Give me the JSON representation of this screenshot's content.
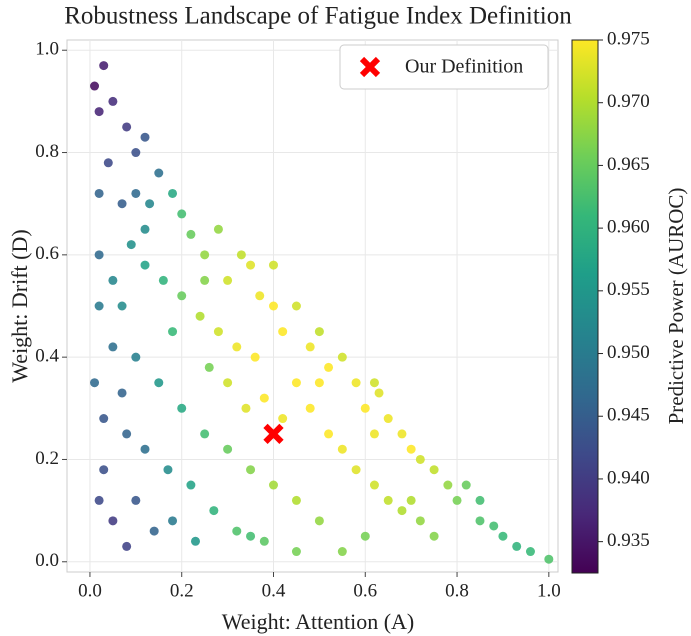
{
  "chart_data": {
    "type": "scatter",
    "title": "Robustness Landscape of Fatigue Index Definition",
    "xlabel": "Weight: Attention (A)",
    "ylabel": "Weight: Drift (D)",
    "colorbar_label": "Predictive Power (AUROC)",
    "colormap": "viridis",
    "grid": true,
    "legend": "upper right",
    "xlim": [
      -0.05,
      1.02
    ],
    "ylim": [
      -0.02,
      1.02
    ],
    "clim": [
      0.9325,
      0.975
    ],
    "xticks": [
      {
        "value": 0,
        "label": "0.0"
      },
      0.2,
      0.4,
      0.6,
      0.8,
      {
        "value": 1,
        "label": "1.0"
      }
    ],
    "yticks": [
      {
        "value": 0,
        "label": "0.0"
      },
      0.2,
      0.4,
      0.6,
      0.8,
      {
        "value": 1,
        "label": "1.0"
      }
    ],
    "cticks": [
      {
        "value": 0.935,
        "label": "0.935"
      },
      {
        "value": 0.94,
        "label": "0.940"
      },
      {
        "value": 0.945,
        "label": "0.945"
      },
      {
        "value": 0.95,
        "label": "0.950"
      },
      {
        "value": 0.955,
        "label": "0.955"
      },
      {
        "value": 0.96,
        "label": "0.960"
      },
      {
        "value": 0.965,
        "label": "0.965"
      },
      {
        "value": 0.97,
        "label": "0.970"
      },
      {
        "value": 0.975,
        "label": "0.975"
      }
    ],
    "series": [
      {
        "x": [
          0.01,
          0.03,
          0.02,
          0.05,
          0.08,
          0.04,
          0.1,
          0.12,
          0.15,
          0.07,
          0.02,
          0.13,
          0.18,
          0.2,
          0.22,
          0.25,
          0.28,
          0.3,
          0.33,
          0.35,
          0.37,
          0.4,
          0.42,
          0.45,
          0.48,
          0.5,
          0.52,
          0.55,
          0.58,
          0.6,
          0.63,
          0.65,
          0.68,
          0.7,
          0.72,
          0.75,
          0.78,
          0.8,
          0.82,
          0.85,
          0.88,
          0.9,
          0.93,
          0.96,
          1.0,
          0.02,
          0.05,
          0.09,
          0.12,
          0.16,
          0.2,
          0.24,
          0.28,
          0.32,
          0.36,
          0.3,
          0.34,
          0.38,
          0.42,
          0.45,
          0.48,
          0.52,
          0.55,
          0.58,
          0.62,
          0.65,
          0.68,
          0.72,
          0.75,
          0.6,
          0.5,
          0.45,
          0.4,
          0.35,
          0.3,
          0.25,
          0.2,
          0.15,
          0.1,
          0.05,
          0.01,
          0.03,
          0.08,
          0.12,
          0.17,
          0.22,
          0.27,
          0.32,
          0.38,
          0.45,
          0.55,
          0.02,
          0.05,
          0.08,
          0.1,
          0.14,
          0.18,
          0.23,
          0.03,
          0.07,
          0.18,
          0.26,
          0.4,
          0.5,
          0.62,
          0.7,
          0.85,
          0.02,
          0.1,
          0.12,
          0.35,
          0.25,
          0.62,
          0.07
        ],
        "values": [
          0.93,
          0.97,
          0.88,
          0.9,
          0.85,
          0.78,
          0.8,
          0.83,
          0.76,
          0.7,
          0.72,
          0.7,
          0.72,
          0.68,
          0.64,
          0.6,
          0.65,
          0.55,
          0.6,
          0.58,
          0.52,
          0.5,
          0.45,
          0.5,
          0.42,
          0.45,
          0.38,
          0.4,
          0.35,
          0.3,
          0.33,
          0.28,
          0.25,
          0.22,
          0.2,
          0.18,
          0.15,
          0.12,
          0.15,
          0.08,
          0.07,
          0.05,
          0.03,
          0.02,
          0.005,
          0.6,
          0.55,
          0.62,
          0.58,
          0.55,
          0.52,
          0.48,
          0.45,
          0.42,
          0.4,
          0.35,
          0.3,
          0.32,
          0.28,
          0.35,
          0.3,
          0.25,
          0.22,
          0.18,
          0.15,
          0.12,
          0.1,
          0.08,
          0.05,
          0.05,
          0.08,
          0.12,
          0.15,
          0.18,
          0.22,
          0.25,
          0.3,
          0.35,
          0.4,
          0.42,
          0.35,
          0.28,
          0.25,
          0.22,
          0.18,
          0.15,
          0.1,
          0.06,
          0.04,
          0.02,
          0.02,
          0.12,
          0.08,
          0.03,
          0.12,
          0.06,
          0.08,
          0.04,
          0.18,
          0.5,
          0.45,
          0.38,
          0.58,
          0.35,
          0.25,
          0.12,
          0.12,
          0.5,
          0.72,
          0.65,
          0.05,
          0.55,
          0.35,
          0.33
        ],
        "color_values": [
          0.934,
          0.936,
          0.937,
          0.938,
          0.94,
          0.942,
          0.943,
          0.944,
          0.948,
          0.945,
          0.946,
          0.952,
          0.958,
          0.962,
          0.965,
          0.968,
          0.968,
          0.972,
          0.971,
          0.973,
          0.974,
          0.975,
          0.975,
          0.972,
          0.974,
          0.971,
          0.975,
          0.972,
          0.974,
          0.975,
          0.973,
          0.974,
          0.974,
          0.975,
          0.972,
          0.971,
          0.968,
          0.966,
          0.965,
          0.963,
          0.962,
          0.961,
          0.96,
          0.961,
          0.963,
          0.947,
          0.952,
          0.954,
          0.957,
          0.96,
          0.965,
          0.97,
          0.972,
          0.974,
          0.975,
          0.972,
          0.973,
          0.975,
          0.974,
          0.975,
          0.975,
          0.975,
          0.974,
          0.973,
          0.972,
          0.971,
          0.97,
          0.968,
          0.967,
          0.966,
          0.968,
          0.97,
          0.969,
          0.967,
          0.965,
          0.962,
          0.958,
          0.955,
          0.951,
          0.948,
          0.947,
          0.944,
          0.946,
          0.948,
          0.953,
          0.957,
          0.96,
          0.963,
          0.964,
          0.966,
          0.967,
          0.942,
          0.94,
          0.941,
          0.944,
          0.946,
          0.95,
          0.955,
          0.943,
          0.953,
          0.961,
          0.966,
          0.972,
          0.975,
          0.974,
          0.97,
          0.962,
          0.95,
          0.947,
          0.953,
          0.962,
          0.967,
          0.972,
          0.946
        ]
      },
      {
        "name": "Our Definition",
        "color": "#ff0000",
        "x": [
          0.4
        ],
        "values": [
          0.25
        ]
      }
    ]
  }
}
